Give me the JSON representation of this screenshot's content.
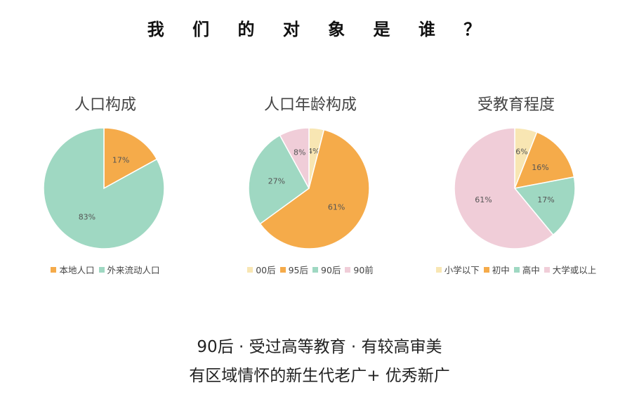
{
  "title": "我 们 的 对 象 是 谁 ？",
  "chart_data": [
    {
      "type": "pie",
      "title": "人口构成",
      "categories": [
        "本地人口",
        "外来流动人口"
      ],
      "values": [
        17,
        83
      ],
      "labels": [
        "17%",
        "83%"
      ],
      "colors": [
        "#f5ab4a",
        "#9fd8c2"
      ],
      "legend": "bottom"
    },
    {
      "type": "pie",
      "title": "人口年龄构成",
      "categories": [
        "00后",
        "95后",
        "90后",
        "90前"
      ],
      "values": [
        4,
        61,
        27,
        8
      ],
      "labels": [
        "4%",
        "61%",
        "27%",
        "8%"
      ],
      "colors": [
        "#f8e6b3",
        "#f5ab4a",
        "#9fd8c2",
        "#f0cdd8"
      ],
      "legend": "bottom"
    },
    {
      "type": "pie",
      "title": "受教育程度",
      "categories": [
        "小学以下",
        "初中",
        "高中",
        "大学或以上"
      ],
      "values": [
        6,
        16,
        17,
        61
      ],
      "labels": [
        "6%",
        "16%",
        "17%",
        "61%"
      ],
      "colors": [
        "#f8e6b3",
        "#f5ab4a",
        "#9fd8c2",
        "#f0cdd8"
      ],
      "legend": "bottom"
    }
  ],
  "captions": {
    "line1": "90后 · 受过高等教育 · 有较高审美",
    "line2": "有区域情怀的新生代老广+ 优秀新广"
  }
}
